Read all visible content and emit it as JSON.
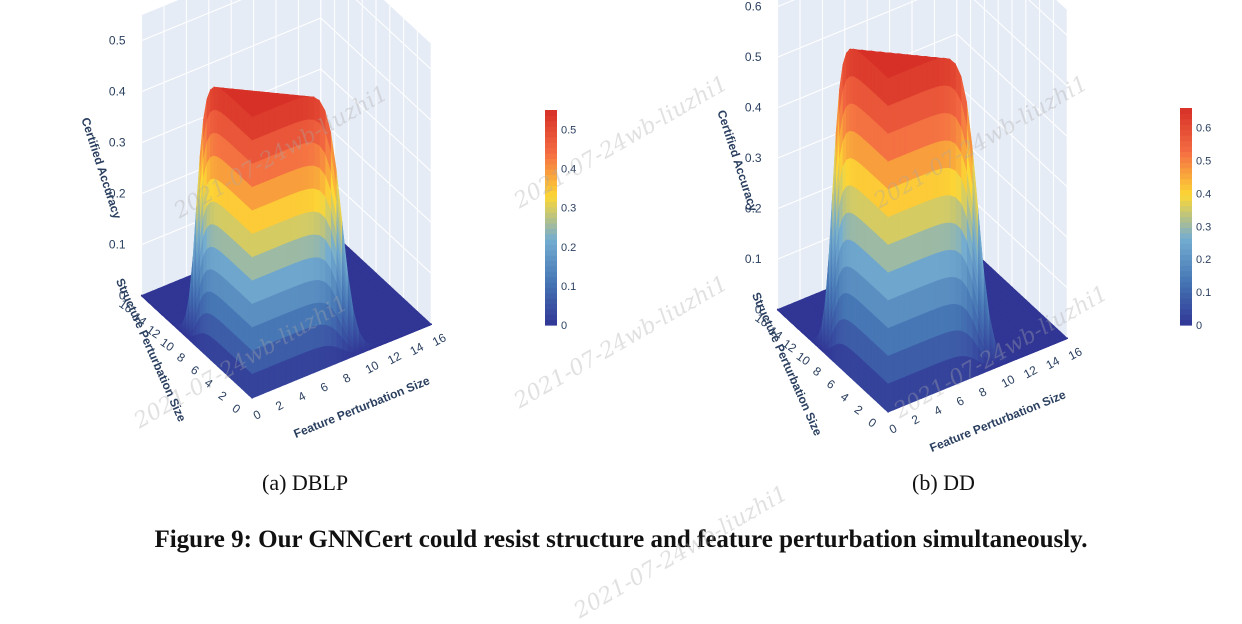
{
  "captions": {
    "a": "(a) DBLP",
    "b": "(b) DD",
    "figure": "Figure 9: Our GNNCert could resist structure and feature perturbation simultaneously."
  },
  "watermark": "2021-07-24wb-liuzhi1",
  "colors": {
    "pane": "#e6ecf6",
    "grid": "#ffffff",
    "tick_text": "#2a3f5f"
  },
  "colorscale": [
    "#313695",
    "#4575b4",
    "#74add1",
    "#fdd835",
    "#f46d43",
    "#d73027"
  ],
  "chart_data": [
    {
      "type": "surface3d",
      "panel": "a",
      "xlabel": "Feature Perturbation Size",
      "ylabel": "Structure Perturbation Size",
      "zlabel": "Certified Accuracy",
      "x_ticks": [
        0,
        2,
        4,
        6,
        8,
        10,
        12,
        14,
        16
      ],
      "y_ticks": [
        0,
        2,
        4,
        6,
        8,
        10,
        12,
        14,
        16
      ],
      "z_ticks": [
        0,
        0.1,
        0.2,
        0.3,
        0.4,
        0.5
      ],
      "colorbar_ticks": [
        0,
        0.1,
        0.2,
        0.3,
        0.4,
        0.5
      ],
      "zlim": [
        0,
        0.55
      ],
      "max_value": 0.55,
      "threshold": 8
    },
    {
      "type": "surface3d",
      "panel": "b",
      "xlabel": "Feature Perturbation Size",
      "ylabel": "Structure Perturbation Size",
      "zlabel": "Certified Accuracy",
      "x_ticks": [
        0,
        2,
        4,
        6,
        8,
        10,
        12,
        14,
        16
      ],
      "y_ticks": [
        0,
        2,
        4,
        6,
        8,
        10,
        12,
        14,
        16
      ],
      "z_ticks": [
        0,
        0.1,
        0.2,
        0.3,
        0.4,
        0.5,
        0.6
      ],
      "colorbar_ticks": [
        0,
        0.1,
        0.2,
        0.3,
        0.4,
        0.5,
        0.6
      ],
      "zlim": [
        0,
        0.65
      ],
      "max_value": 0.66,
      "threshold": 8
    }
  ]
}
